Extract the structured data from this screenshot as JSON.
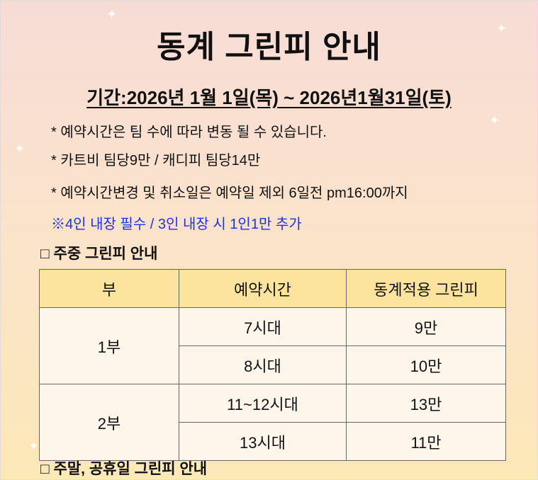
{
  "title": "동계 그린피 안내",
  "period": "기간:2026년 1월 1일(목) ~ 2026년1월31일(토)",
  "notes": [
    "* 예약시간은 팀 수에 따라 변동 될 수 있습니다.",
    "* 카트비 팀당9만 / 캐디피 팀당14만",
    "* 예약시간변경 및 취소일은 예약일 제외 6일전 pm16:00까지"
  ],
  "highlight_note": "※4인 내장 필수 / 3인 내장 시 1인1만 추가",
  "weekday_section": "□ 주중 그린피 안내",
  "weekend_section": "□ 주말, 공휴일 그린피 안내",
  "table": {
    "headers": [
      "부",
      "예약시간",
      "동계적용 그린피"
    ],
    "groups": [
      {
        "part": "1부",
        "rows": [
          {
            "time": "7시대",
            "fee": "9만"
          },
          {
            "time": "8시대",
            "fee": "10만"
          }
        ]
      },
      {
        "part": "2부",
        "rows": [
          {
            "time": "11~12시대",
            "fee": "13만"
          },
          {
            "time": "13시대",
            "fee": "11만"
          }
        ]
      }
    ]
  },
  "colors": {
    "header_bg": "#fde49e",
    "highlight": "#2030e8"
  }
}
